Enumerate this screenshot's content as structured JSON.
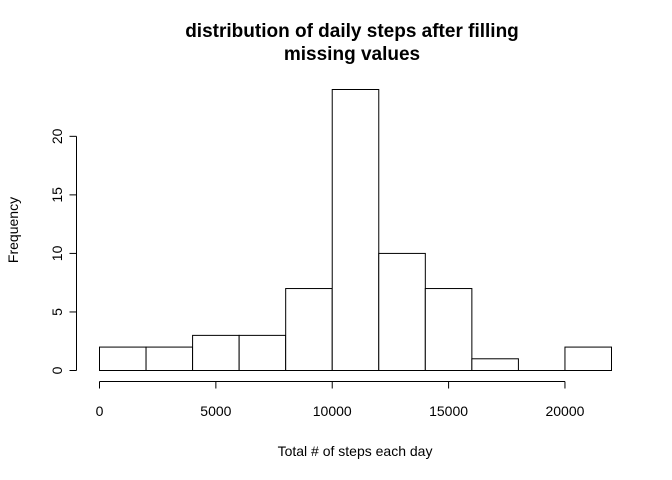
{
  "chart_data": {
    "type": "bar",
    "subtype": "histogram",
    "title_lines": [
      "distribution of daily steps after filling",
      "missing values"
    ],
    "xlabel": "Total # of steps each day",
    "ylabel": "Frequency",
    "bins": [
      {
        "start": 0,
        "end": 2000,
        "count": 2
      },
      {
        "start": 2000,
        "end": 4000,
        "count": 2
      },
      {
        "start": 4000,
        "end": 6000,
        "count": 3
      },
      {
        "start": 6000,
        "end": 8000,
        "count": 3
      },
      {
        "start": 8000,
        "end": 10000,
        "count": 7
      },
      {
        "start": 10000,
        "end": 12000,
        "count": 24
      },
      {
        "start": 12000,
        "end": 14000,
        "count": 10
      },
      {
        "start": 14000,
        "end": 16000,
        "count": 7
      },
      {
        "start": 16000,
        "end": 18000,
        "count": 1
      },
      {
        "start": 18000,
        "end": 20000,
        "count": 0
      },
      {
        "start": 20000,
        "end": 22000,
        "count": 2
      }
    ],
    "x_ticks": [
      0,
      5000,
      10000,
      15000,
      20000
    ],
    "x_tick_labels": [
      "0",
      "5000",
      "10000",
      "15000",
      "20000"
    ],
    "y_ticks": [
      0,
      5,
      10,
      15,
      20
    ],
    "y_tick_labels": [
      "0",
      "5",
      "10",
      "15",
      "20"
    ],
    "xlim": [
      0,
      22000
    ],
    "ylim": [
      0,
      24
    ],
    "grid": false,
    "bar_fill": "#ffffff",
    "bar_stroke": "#000000"
  }
}
